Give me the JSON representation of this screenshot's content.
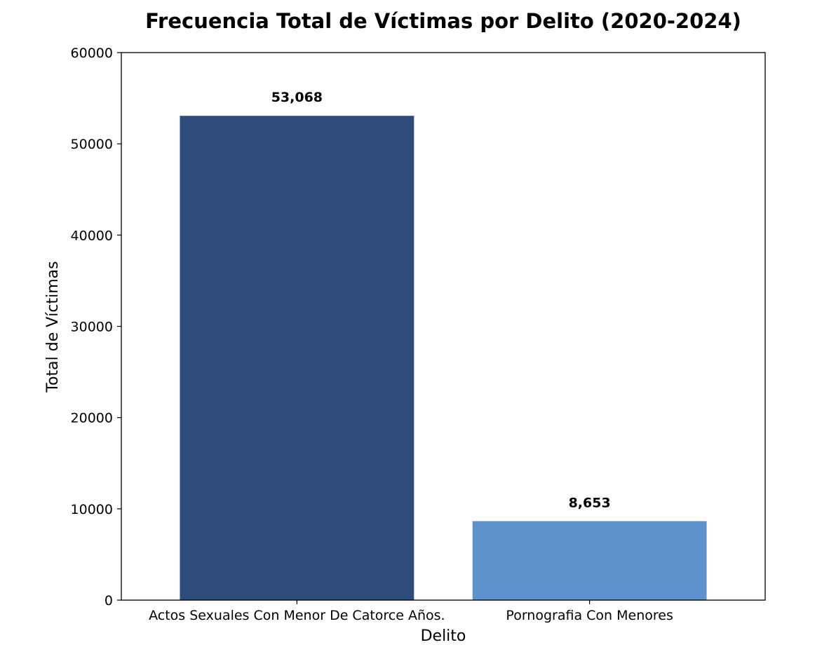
{
  "chart_data": {
    "type": "bar",
    "title": "Frecuencia Total de Víctimas por Delito (2020-2024)",
    "xlabel": "Delito",
    "ylabel": "Total de Víctimas",
    "categories": [
      "Actos Sexuales Con Menor De Catorce Años.",
      "Pornografia Con Menores"
    ],
    "values": [
      53068,
      8653
    ],
    "data_labels": [
      "53,068",
      "8,653"
    ],
    "colors": [
      "#2d4c7c",
      "#5e92cd"
    ],
    "ylim": [
      0,
      60000
    ],
    "yticks": [
      0,
      10000,
      20000,
      30000,
      40000,
      50000,
      60000
    ],
    "grid": false,
    "legend": "none"
  }
}
